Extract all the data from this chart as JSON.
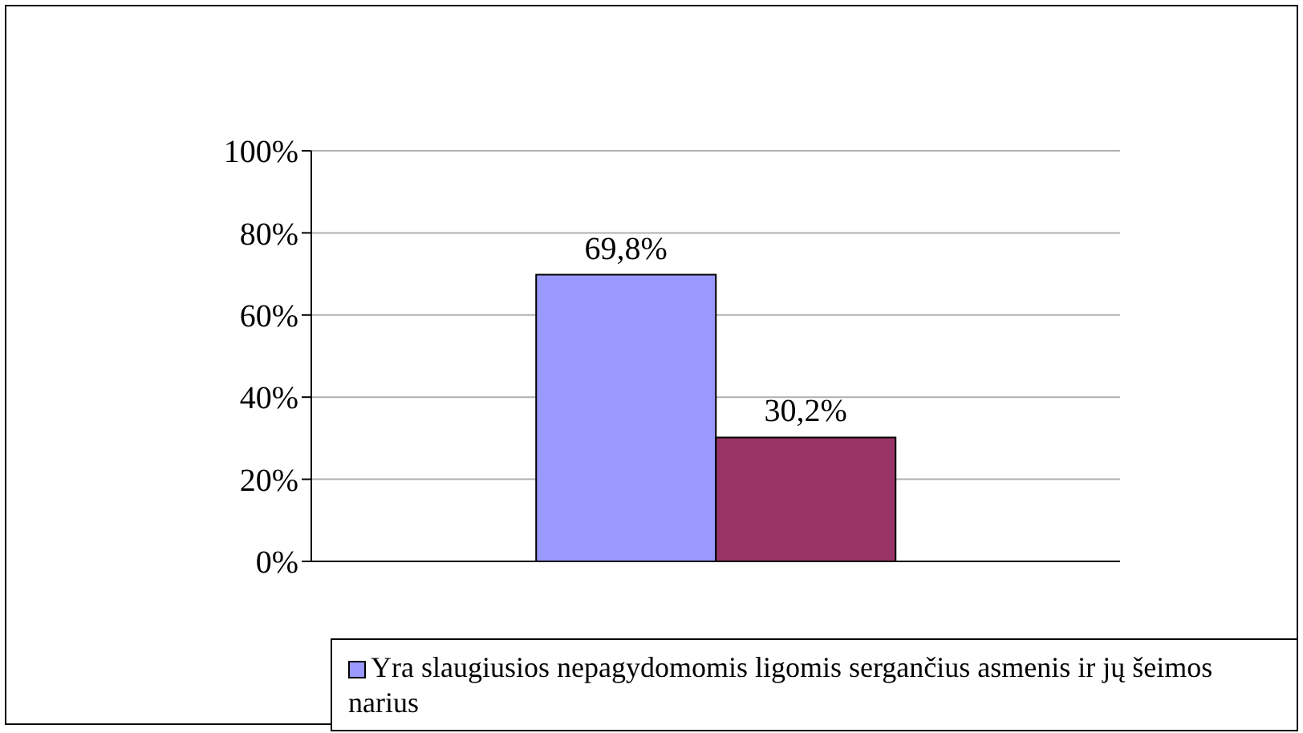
{
  "chart_data": {
    "type": "bar",
    "categories": [
      null
    ],
    "series": [
      {
        "name": "Yra slaugiusios nepagydomomis ligomis sergančius asmenis ir jų šeimos narius",
        "color": "#9999ff",
        "values": [
          69.8
        ],
        "value_labels": [
          "69,8%"
        ]
      },
      {
        "color": "#993366",
        "values": [
          30.2
        ],
        "value_labels": [
          "30,2%"
        ]
      }
    ],
    "ylim": [
      0,
      100
    ],
    "yticks": [
      {
        "value": 0,
        "label": "0%"
      },
      {
        "value": 20,
        "label": "20%"
      },
      {
        "value": 40,
        "label": "40%"
      },
      {
        "value": 60,
        "label": "60%"
      },
      {
        "value": 80,
        "label": "80%"
      },
      {
        "value": 100,
        "label": "100%"
      }
    ],
    "grid": "y",
    "legend": "bottom"
  }
}
